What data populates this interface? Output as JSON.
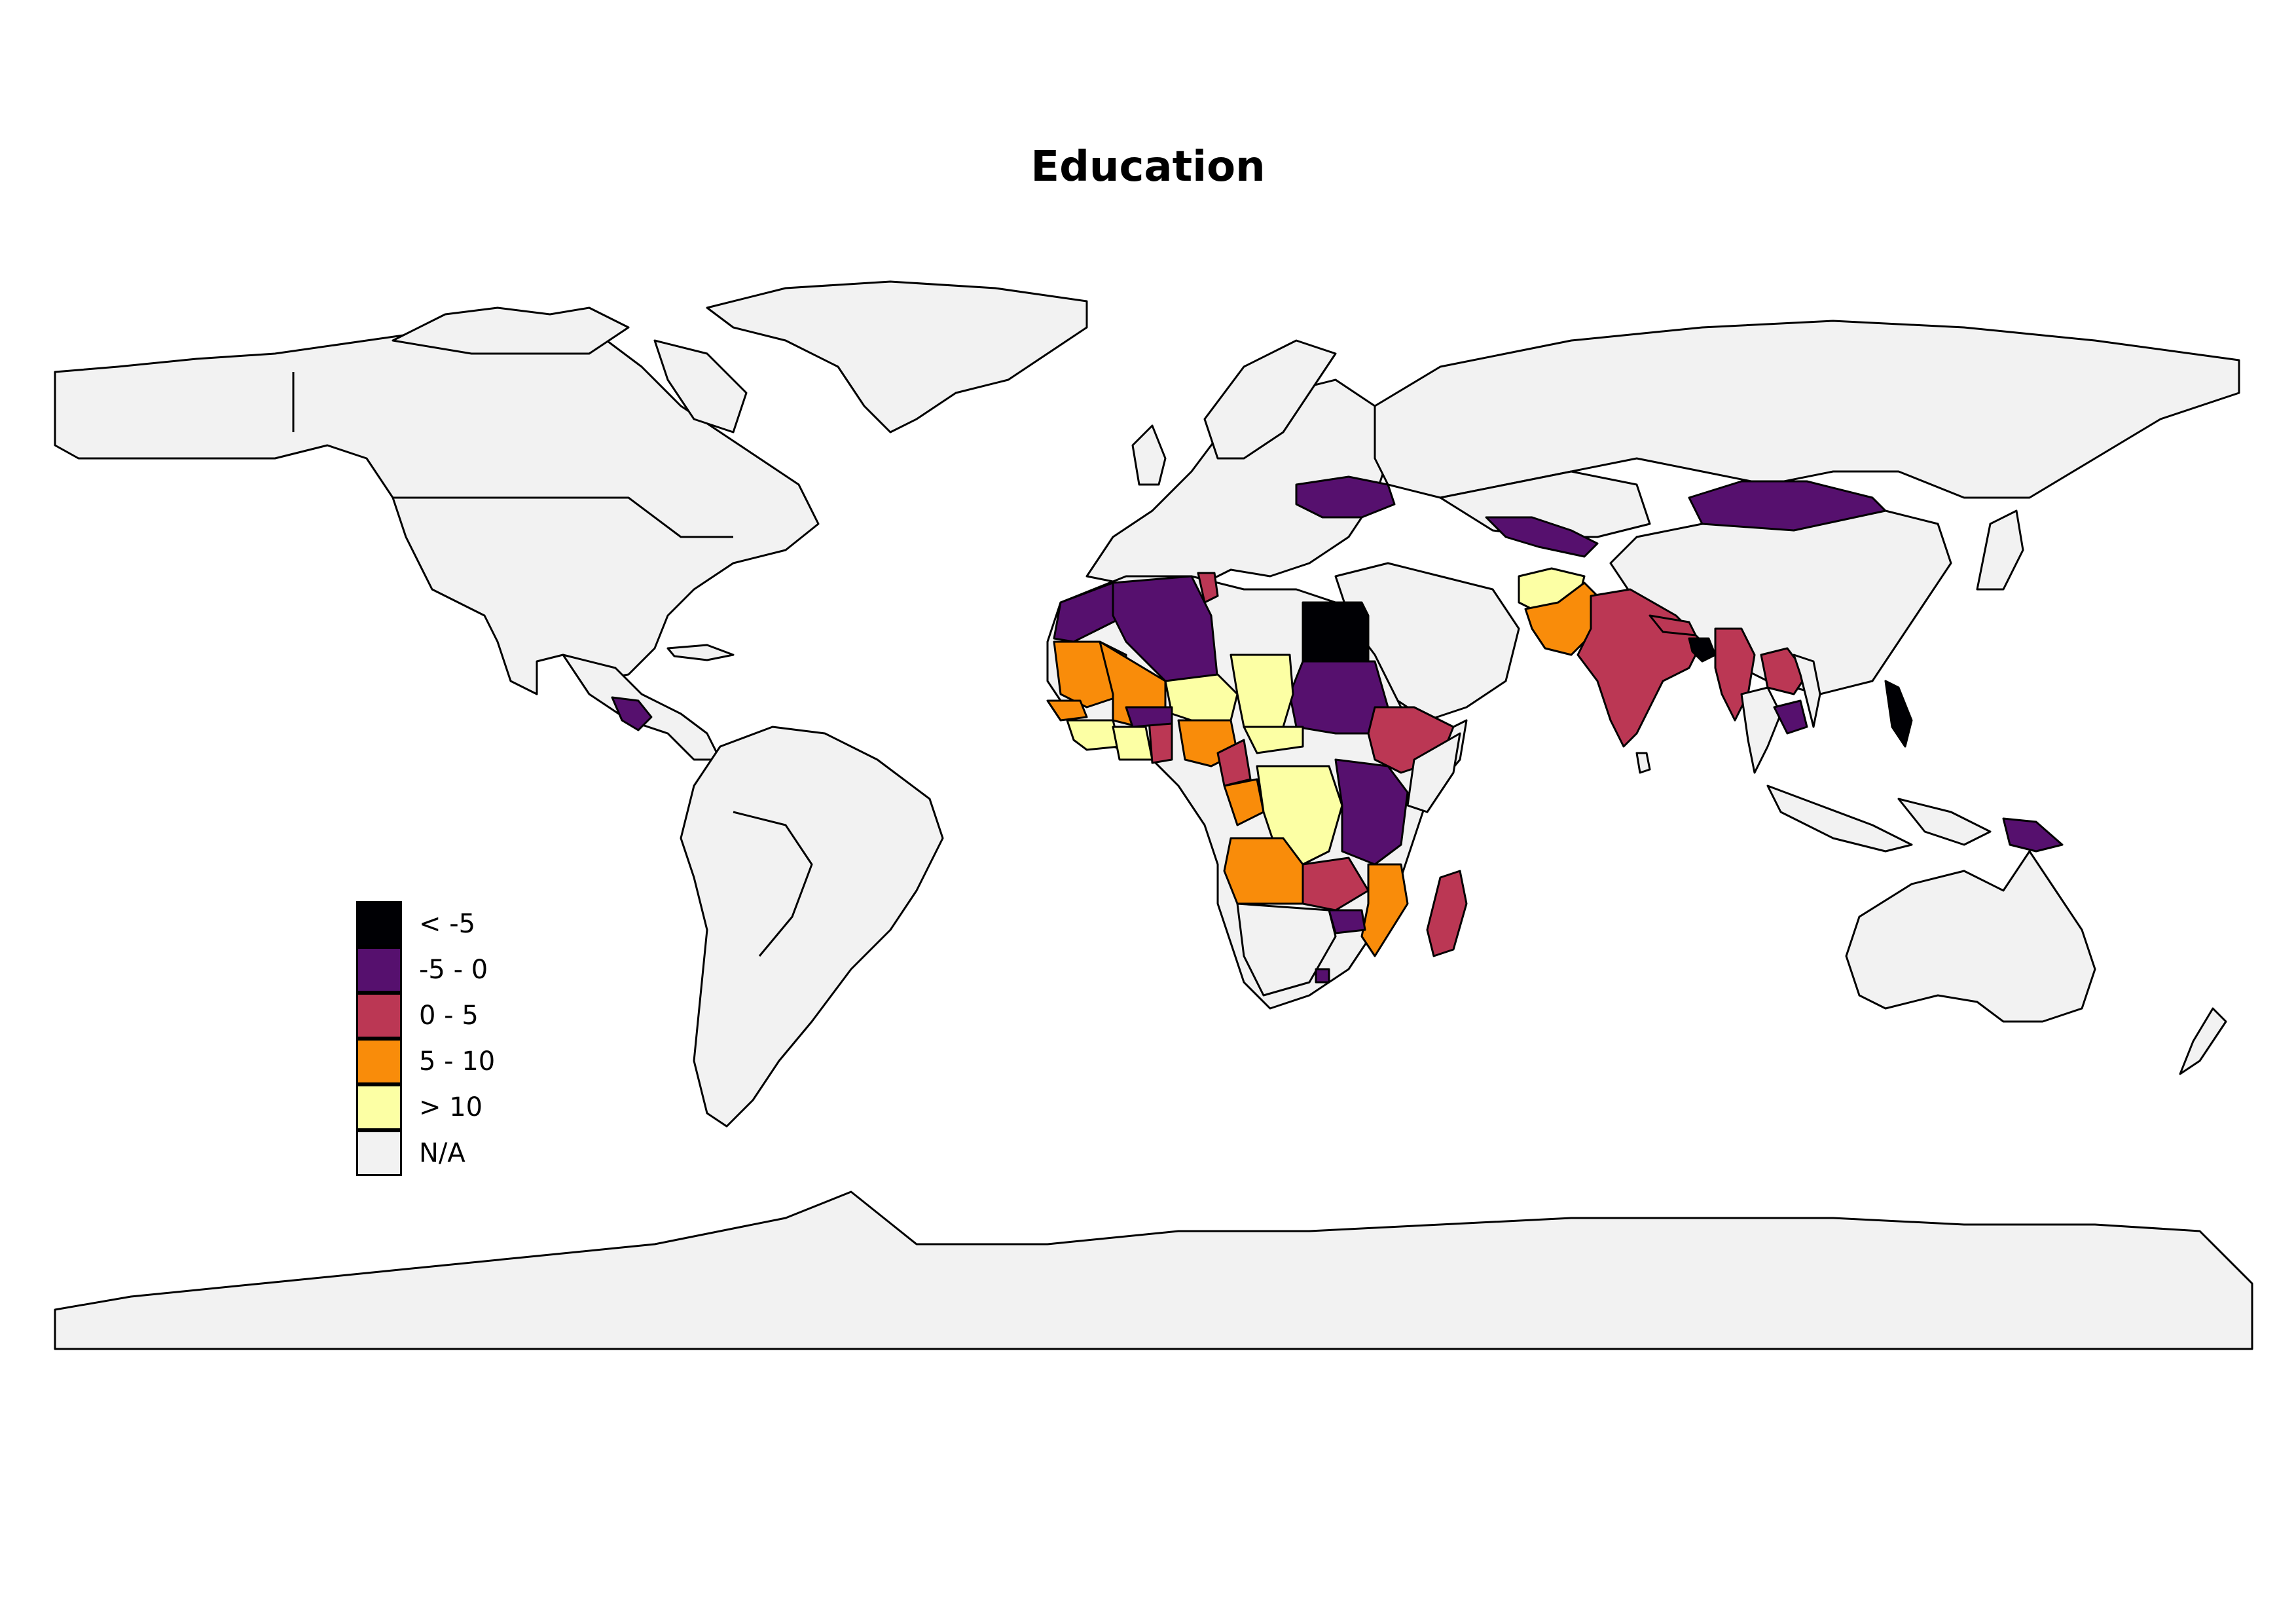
{
  "title": "Education",
  "map": {
    "projection": "equirectangular",
    "na_color": "#f2f2f2",
    "border_color": "#000000"
  },
  "legend": {
    "items": [
      {
        "label": "< -5",
        "color": "#000004"
      },
      {
        "label": "-5 - 0",
        "color": "#56106e"
      },
      {
        "label": "0 - 5",
        "color": "#bb3754"
      },
      {
        "label": "5 - 10",
        "color": "#f98c0a"
      },
      {
        "label": "> 10",
        "color": "#fcffa4"
      },
      {
        "label": "N/A",
        "color": "#f2f2f2"
      }
    ]
  }
}
